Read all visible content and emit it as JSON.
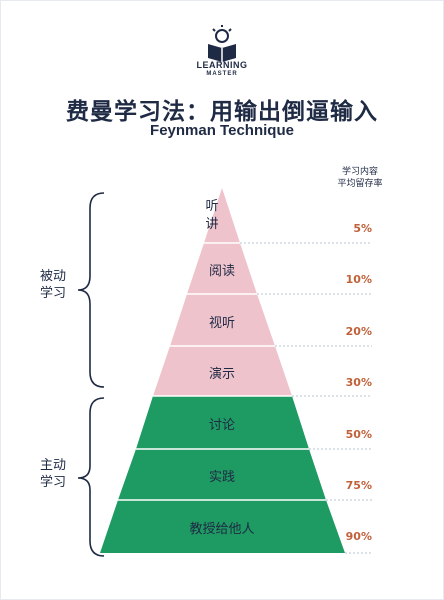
{
  "logo": {
    "line1": "LEARNING",
    "line2": "MASTER",
    "icon": "book-lightbulb-icon"
  },
  "title": "费曼学习法：用输出倒逼输入",
  "subtitle": "Feynman Technique",
  "column_header": {
    "line1": "学习内容",
    "line2": "平均留存率"
  },
  "groups": {
    "passive": {
      "line1": "被动",
      "line2": "学习"
    },
    "active": {
      "line1": "主动",
      "line2": "学习"
    }
  },
  "levels": [
    {
      "label": "听讲",
      "retention": "5%"
    },
    {
      "label": "阅读",
      "retention": "10%"
    },
    {
      "label": "视听",
      "retention": "20%"
    },
    {
      "label": "演示",
      "retention": "30%"
    },
    {
      "label": "讨论",
      "retention": "50%"
    },
    {
      "label": "实践",
      "retention": "75%"
    },
    {
      "label": "教授给他人",
      "retention": "90%"
    }
  ],
  "colors": {
    "passive": "#efc3cc",
    "active": "#1e9a63",
    "text": "#1f2a44",
    "percent": "#c0613a",
    "divider": "#ffffff",
    "dotted": "#b8c4d6"
  }
}
